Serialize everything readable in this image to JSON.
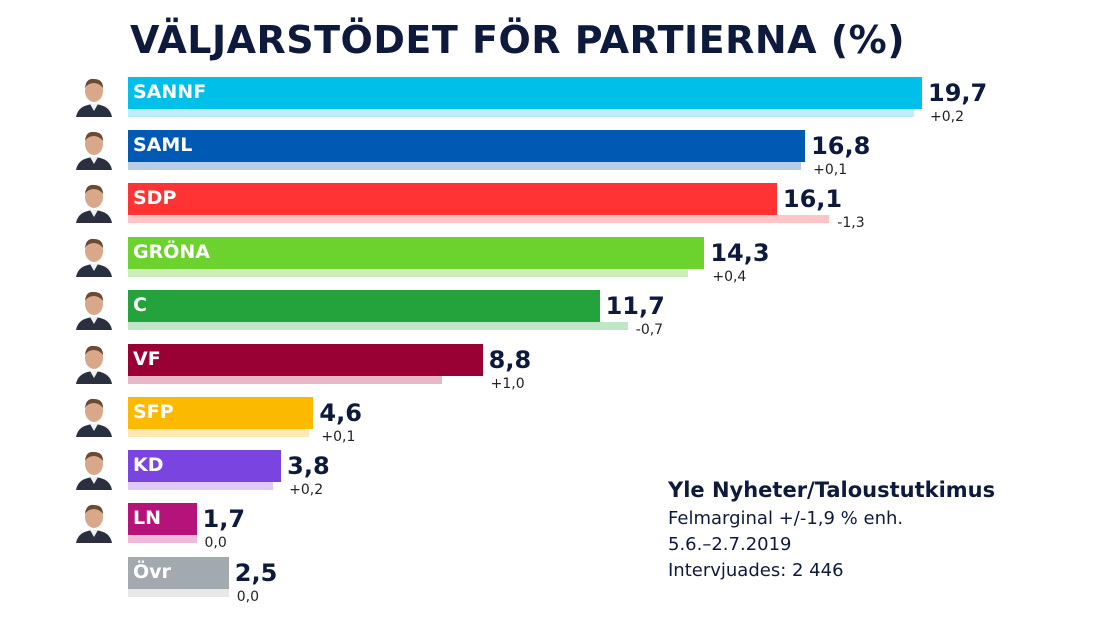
{
  "chart_data": {
    "type": "bar",
    "orientation": "horizontal",
    "title": "VÄLJARSTÖDET FÖR PARTIERNA (%)",
    "categories": [
      "SANNF",
      "SAML",
      "SDP",
      "GRÖNA",
      "C",
      "VF",
      "SFP",
      "KD",
      "LN",
      "Övr"
    ],
    "values": [
      19.7,
      16.8,
      16.1,
      14.3,
      11.7,
      8.8,
      4.6,
      3.8,
      1.7,
      2.5
    ],
    "value_labels": [
      "19,7",
      "16,8",
      "16,1",
      "14,3",
      "11,7",
      "8,8",
      "4,6",
      "3,8",
      "1,7",
      "2,5"
    ],
    "change_labels": [
      "+0,2",
      "+0,1",
      "-1,3",
      "+0,4",
      "-0,7",
      "+1,0",
      "+0,1",
      "+0,2",
      "0,0",
      "0,0"
    ],
    "changes": [
      0.2,
      0.1,
      -1.3,
      0.4,
      -0.7,
      1.0,
      0.1,
      0.2,
      0.0,
      0.0
    ],
    "colors": [
      "#00c0ea",
      "#0059b3",
      "#ff3333",
      "#6cd22e",
      "#24a33c",
      "#990033",
      "#fbb900",
      "#7a44e0",
      "#b5127a",
      "#a2aab0"
    ],
    "prev_colors": [
      "#bdeefa",
      "#b8cde8",
      "#ffc4c6",
      "#cdeeb8",
      "#bfe6c6",
      "#e8b8c8",
      "#fde9b3",
      "#dccbf7",
      "#eebadb",
      "#e6e8ea"
    ],
    "has_portrait": [
      true,
      true,
      true,
      true,
      true,
      true,
      true,
      true,
      true,
      false
    ],
    "xlim": [
      0,
      20
    ],
    "grid": false
  },
  "source": {
    "heading": "Yle Nyheter/Taloustutkimus",
    "lines": [
      "Felmarginal +/-1,9 % enh.",
      "5.6.–2.7.2019",
      "Intervjuades: 2 446"
    ]
  }
}
